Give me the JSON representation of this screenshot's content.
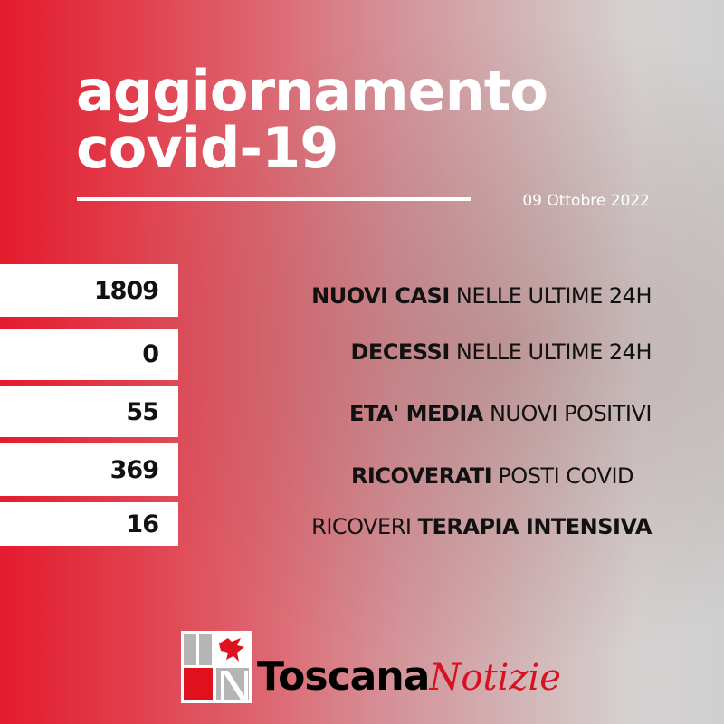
{
  "header": {
    "title_line1": "aggiornamento",
    "title_line2": "covid-19",
    "date": "09 Ottobre 2022"
  },
  "stats": [
    {
      "value": "1809",
      "label_bold": "NUOVI CASI",
      "label_regular": "NELLE ULTIME 24H"
    },
    {
      "value": "0",
      "label_bold": "DECESSI",
      "label_regular": "NELLE ULTIME 24H"
    },
    {
      "value": "55",
      "label_bold": "ETA' MEDIA",
      "label_regular": "NUOVI POSITIVI"
    },
    {
      "value": "369",
      "label_bold": "RICOVERATI",
      "label_regular": "POSTI COVID"
    },
    {
      "value": "16",
      "label_regular": "RICOVERI",
      "label_bold": "TERAPIA INTENSIVA"
    }
  ],
  "brand": {
    "name_bold": "Toscana",
    "name_italic": "Notizie",
    "accent": "#d8111e"
  }
}
